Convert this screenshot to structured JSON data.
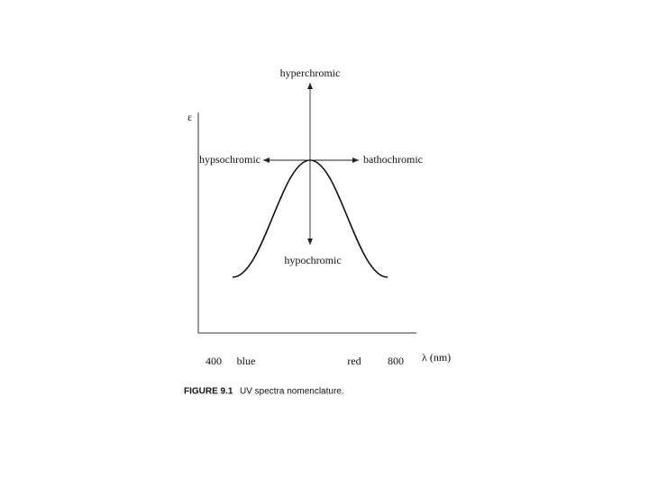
{
  "axes": {
    "y_label": "ε",
    "x_label": "λ (nm)",
    "x_ticks": [
      "400",
      "blue",
      "red",
      "800"
    ]
  },
  "annotations": {
    "up": "hyperchromic",
    "left": "hypsochromic",
    "right": "bathochromic",
    "down": "hypochromic"
  },
  "caption": {
    "label": "FIGURE 9.1",
    "text": "UV spectra nomenclature."
  }
}
